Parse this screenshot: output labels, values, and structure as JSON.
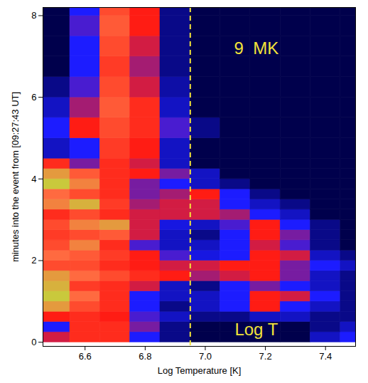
{
  "chart_data": {
    "type": "heatmap",
    "xlabel": "Log Temperature [K]",
    "ylabel": "minutes into the event from [09:27:43 UT]",
    "xlim": [
      6.46,
      7.5
    ],
    "ylim": [
      -0.1,
      8.2
    ],
    "xticks": [
      6.6,
      6.8,
      {
        "value": 7,
        "label": "7.0"
      },
      7.2,
      7.4
    ],
    "yticks": [
      0,
      2,
      4,
      6,
      8
    ],
    "x_edges": [
      6.45,
      6.55,
      6.65,
      6.75,
      6.85,
      6.95,
      7.05,
      7.15,
      7.25,
      7.35,
      7.45,
      7.55
    ],
    "y_edges": [
      0,
      0.25,
      0.5,
      0.75,
      1,
      1.25,
      1.5,
      1.75,
      2,
      2.25,
      2.5,
      2.75,
      3,
      3.25,
      3.5,
      3.75,
      4,
      4.25,
      4.5,
      5,
      5.5,
      6,
      6.5,
      7,
      7.5,
      8,
      8.25
    ],
    "color_range": [
      0,
      1
    ],
    "values": [
      [
        0.5,
        0.6,
        0.6,
        0.3,
        0.1,
        0,
        0,
        0,
        0,
        0.2,
        0.3
      ],
      [
        0.3,
        0.6,
        0.6,
        0.4,
        0.1,
        0,
        0,
        0,
        0,
        0.1,
        0.2
      ],
      [
        0.55,
        0.6,
        0.55,
        0.35,
        0.2,
        0.1,
        0.1,
        0.2,
        0.2,
        0.1,
        0.1
      ],
      [
        0.9,
        0.7,
        0.6,
        0.3,
        0.1,
        0.2,
        0.3,
        0.55,
        0.3,
        0.2,
        0.1
      ],
      [
        1,
        0.8,
        0.6,
        0.3,
        0.2,
        0.2,
        0.3,
        0.55,
        0.5,
        0.3,
        0.1
      ],
      [
        0.95,
        0.65,
        0.6,
        0.5,
        0.2,
        0.1,
        0.3,
        0.4,
        0.3,
        0.2,
        0.1
      ],
      [
        0.9,
        0.8,
        0.7,
        0.6,
        0.55,
        0.45,
        0.5,
        0.55,
        0.4,
        0.2,
        0.1
      ],
      [
        0.7,
        0.7,
        0.6,
        0.55,
        0.5,
        0.5,
        0.55,
        0.55,
        0.4,
        0.3,
        0.2
      ],
      [
        0.8,
        0.75,
        0.65,
        0.55,
        0.35,
        0.25,
        0.3,
        0.55,
        0.5,
        0.2,
        0.1
      ],
      [
        0.7,
        0.85,
        0.6,
        0.35,
        0.2,
        0.2,
        0.3,
        0.5,
        0.35,
        0.1,
        0
      ],
      [
        0.65,
        0.7,
        0.75,
        0.5,
        0.2,
        0.1,
        0.3,
        0.55,
        0.4,
        0.1,
        0
      ],
      [
        0.7,
        0.85,
        0.9,
        0.5,
        0.25,
        0.2,
        0.35,
        0.55,
        0.3,
        0.1,
        0
      ],
      [
        0.6,
        0.7,
        0.6,
        0.5,
        0.5,
        0.5,
        0.45,
        0.3,
        0.2,
        0,
        0
      ],
      [
        0.85,
        0.95,
        0.65,
        0.45,
        0.5,
        0.5,
        0.3,
        0.2,
        0.1,
        0,
        0
      ],
      [
        0.8,
        0.7,
        0.6,
        0.4,
        0.45,
        0.55,
        0.3,
        0.1,
        0,
        0,
        0
      ],
      [
        1,
        0.85,
        0.6,
        0.4,
        0.3,
        0.2,
        0.1,
        0,
        0,
        0,
        0
      ],
      [
        0.9,
        0.75,
        0.6,
        0.55,
        0.4,
        0.2,
        0,
        0,
        0,
        0,
        0
      ],
      [
        0.6,
        0.4,
        0.6,
        0.5,
        0.2,
        0,
        0,
        0,
        0,
        0,
        0
      ],
      [
        0.2,
        0.3,
        0.65,
        0.55,
        0.2,
        0,
        0,
        0,
        0,
        0,
        0
      ],
      [
        0.3,
        0.55,
        0.7,
        0.6,
        0.35,
        0.1,
        0,
        0,
        0,
        0,
        0
      ],
      [
        0.2,
        0.45,
        0.75,
        0.6,
        0.2,
        0,
        0,
        0,
        0,
        0,
        0
      ],
      [
        0.1,
        0.35,
        0.7,
        0.5,
        0.15,
        0,
        0,
        0,
        0,
        0,
        0
      ],
      [
        0,
        0.3,
        0.65,
        0.45,
        0.1,
        0,
        0,
        0,
        0,
        0,
        0
      ],
      [
        0,
        0.3,
        0.7,
        0.5,
        0.1,
        0,
        0,
        0,
        0,
        0,
        0
      ],
      [
        0,
        0.35,
        0.75,
        0.55,
        0.1,
        0,
        0,
        0,
        0,
        0,
        0
      ],
      [
        0,
        0.3,
        0.7,
        0.55,
        0.1,
        0,
        0,
        0,
        0,
        0,
        0
      ]
    ],
    "vline": {
      "x": 6.95,
      "line_style": "dashed",
      "color": "#f2e33a"
    },
    "annotations": [
      {
        "text": "9  MK",
        "x": 7.17,
        "y": 7.2,
        "color": "#f2e33a"
      },
      {
        "text": "Log T",
        "x": 7.17,
        "y": 0.3,
        "color": "#f2e33a"
      }
    ]
  }
}
